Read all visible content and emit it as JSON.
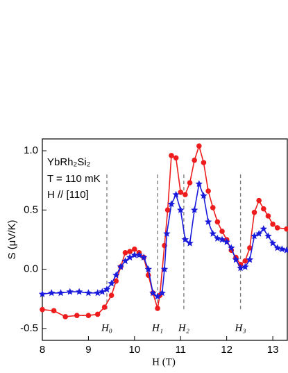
{
  "chart_data": {
    "type": "line",
    "xlabel": "H (T)",
    "ylabel": "S (μV/K)",
    "annotations": [
      "YbRh₂Si₂",
      "T = 110 mK",
      "H // [110]"
    ],
    "markers": [
      {
        "label": "H₀",
        "x": 9.4
      },
      {
        "label": "H₁",
        "x": 10.5
      },
      {
        "label": "H₂",
        "x": 11.07
      },
      {
        "label": "H₃",
        "x": 12.3
      }
    ],
    "xlim": [
      8,
      13.33
    ],
    "ylim": [
      -0.6,
      1.1
    ],
    "xticks": [
      8,
      9,
      10,
      11,
      12,
      13
    ],
    "yticks": [
      {
        "value": -0.5,
        "label": "-0.5"
      },
      {
        "value": 0,
        "label": "0.0"
      },
      {
        "value": 0.5,
        "label": "0.5"
      },
      {
        "value": 1,
        "label": "1.0"
      }
    ],
    "series": [
      {
        "marker": "circle",
        "color": "#ee1c1c",
        "x": [
          8.0,
          8.25,
          8.5,
          8.75,
          9.0,
          9.2,
          9.35,
          9.5,
          9.6,
          9.7,
          9.8,
          9.9,
          10.0,
          10.1,
          10.2,
          10.3,
          10.4,
          10.5,
          10.55,
          10.65,
          10.72,
          10.8,
          10.9,
          11.0,
          11.1,
          11.2,
          11.3,
          11.4,
          11.5,
          11.6,
          11.7,
          11.8,
          11.9,
          12.0,
          12.1,
          12.2,
          12.3,
          12.4,
          12.5,
          12.6,
          12.7,
          12.8,
          12.9,
          13.0,
          13.1,
          13.3
        ],
        "values": [
          -0.34,
          -0.35,
          -0.4,
          -0.39,
          -0.39,
          -0.38,
          -0.32,
          -0.22,
          -0.1,
          0.02,
          0.14,
          0.15,
          0.17,
          0.14,
          0.1,
          -0.05,
          -0.2,
          -0.33,
          -0.22,
          0.2,
          0.5,
          0.96,
          0.94,
          0.65,
          0.63,
          0.73,
          0.92,
          1.04,
          0.9,
          0.66,
          0.52,
          0.4,
          0.32,
          0.25,
          0.16,
          0.1,
          0.04,
          0.07,
          0.18,
          0.48,
          0.58,
          0.51,
          0.45,
          0.38,
          0.35,
          0.34
        ]
      },
      {
        "marker": "star",
        "color": "#1a1adc",
        "x": [
          8.0,
          8.2,
          8.4,
          8.6,
          8.8,
          9.0,
          9.2,
          9.3,
          9.4,
          9.5,
          9.6,
          9.7,
          9.8,
          9.9,
          10.0,
          10.1,
          10.2,
          10.3,
          10.4,
          10.5,
          10.6,
          10.65,
          10.7,
          10.8,
          10.9,
          11.0,
          11.1,
          11.2,
          11.3,
          11.4,
          11.5,
          11.6,
          11.7,
          11.8,
          11.9,
          12.0,
          12.1,
          12.2,
          12.3,
          12.4,
          12.5,
          12.6,
          12.7,
          12.8,
          12.9,
          13.0,
          13.1,
          13.2,
          13.3
        ],
        "values": [
          -0.21,
          -0.2,
          -0.2,
          -0.19,
          -0.19,
          -0.2,
          -0.2,
          -0.19,
          -0.17,
          -0.12,
          -0.05,
          0.02,
          0.07,
          0.1,
          0.12,
          0.12,
          0.1,
          0.0,
          -0.2,
          -0.23,
          -0.2,
          0.0,
          0.3,
          0.55,
          0.63,
          0.5,
          0.25,
          0.22,
          0.5,
          0.72,
          0.62,
          0.4,
          0.3,
          0.26,
          0.25,
          0.23,
          0.18,
          0.08,
          0.01,
          0.02,
          0.08,
          0.28,
          0.3,
          0.34,
          0.28,
          0.22,
          0.18,
          0.17,
          0.16
        ]
      }
    ]
  }
}
